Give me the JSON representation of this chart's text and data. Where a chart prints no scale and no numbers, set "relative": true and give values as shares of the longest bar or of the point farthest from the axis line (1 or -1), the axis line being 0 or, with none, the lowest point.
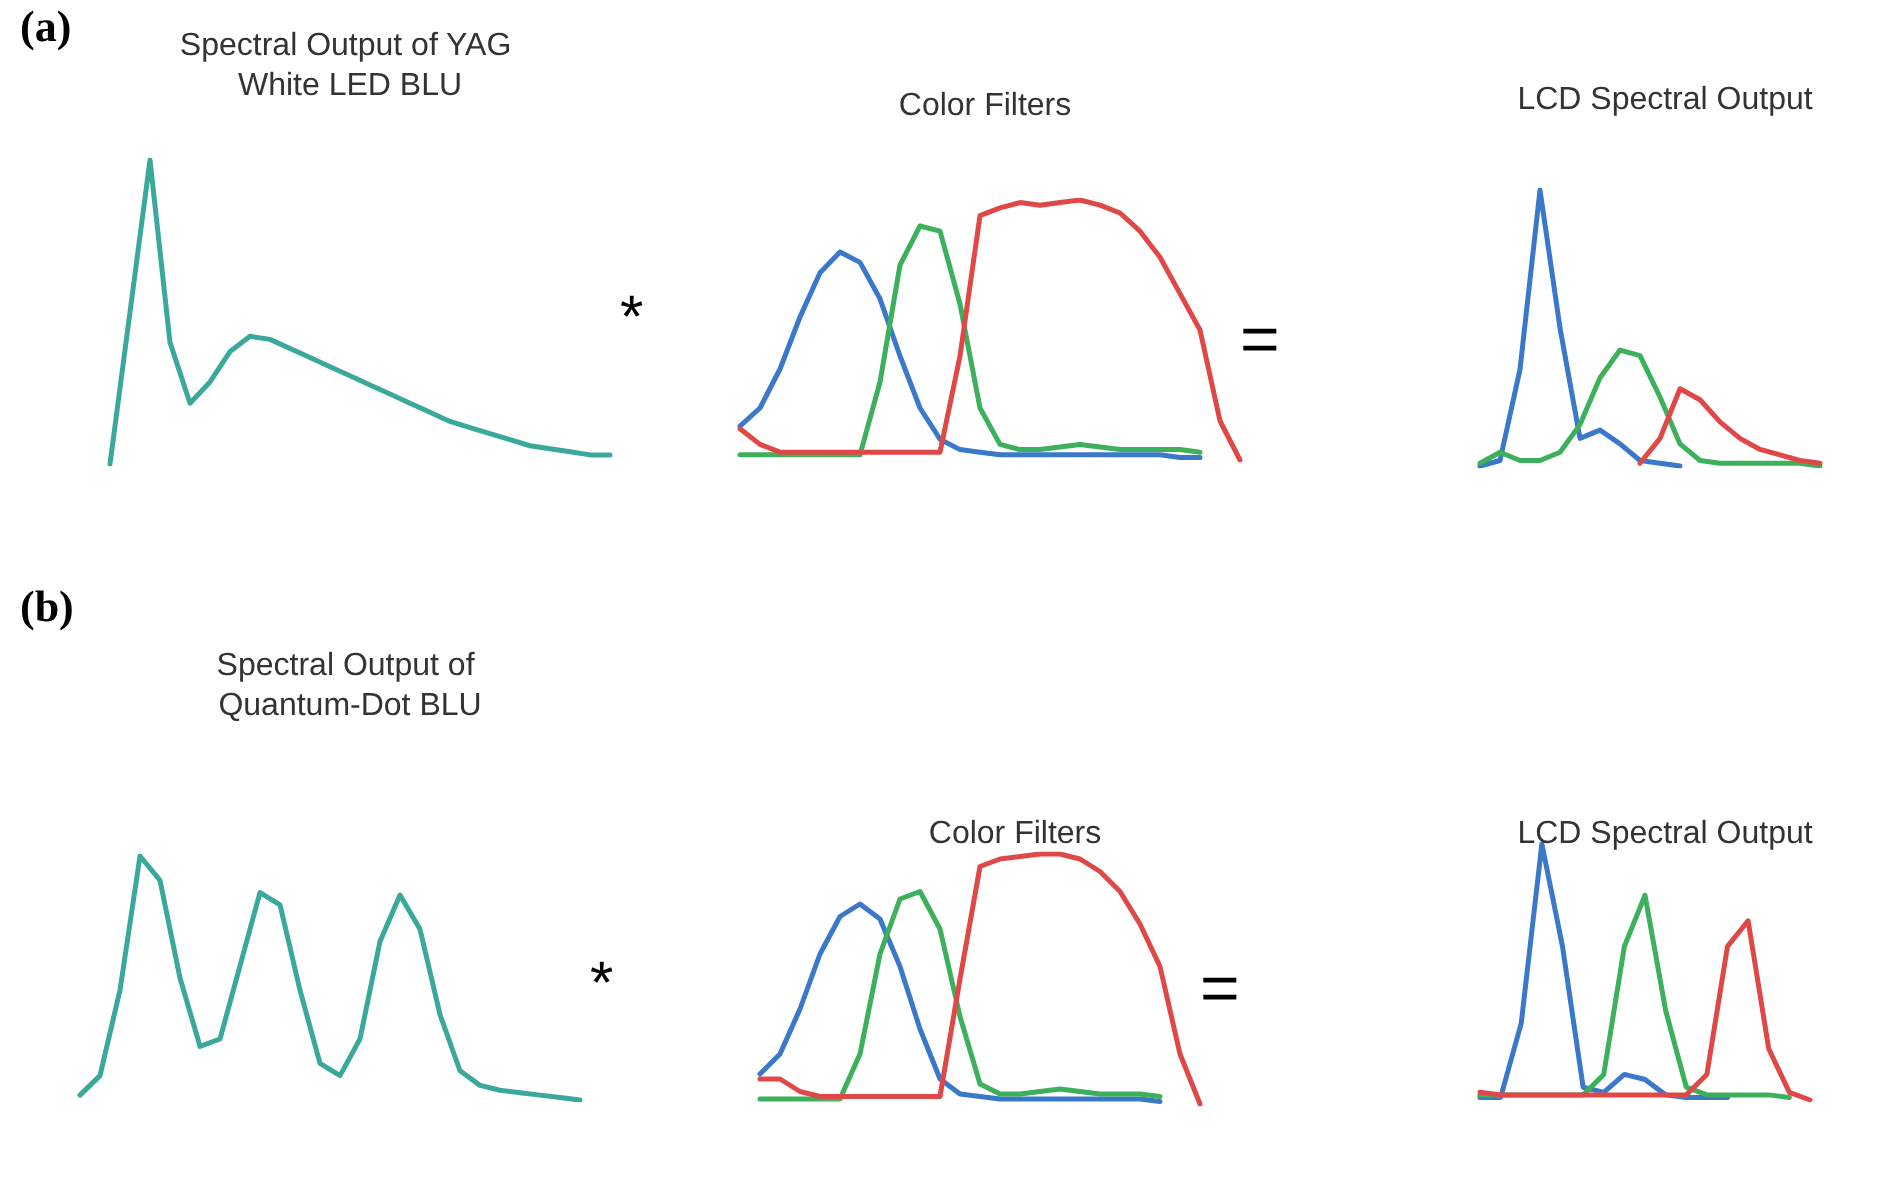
{
  "chart_data": [
    {
      "type": "line",
      "relative": true,
      "marker": "none",
      "title": "Spectral Output of YAG White LED BLU",
      "annotations": [
        "(a)",
        "*"
      ],
      "categories": [
        null,
        null,
        null,
        null,
        null,
        null,
        null,
        null,
        null,
        null,
        null,
        null,
        null,
        null,
        null,
        null,
        null,
        null,
        null,
        null,
        null,
        null,
        null,
        null,
        null,
        null
      ],
      "series": [
        {
          "color": "#3aa89a",
          "values": [
            0,
            0.5,
            1,
            0.4,
            0.2,
            0.27,
            0.37,
            0.42,
            0.41,
            0.38,
            0.35,
            0.32,
            0.29,
            0.26,
            0.23,
            0.2,
            0.17,
            0.14,
            0.12,
            0.1,
            0.08,
            0.06,
            0.05,
            0.04,
            0.03,
            0.03
          ]
        }
      ]
    },
    {
      "type": "line",
      "relative": true,
      "marker": "none",
      "title": "Color Filters",
      "annotations": [
        "="
      ],
      "categories": [
        null,
        null,
        null,
        null,
        null,
        null,
        null,
        null,
        null,
        null,
        null,
        null,
        null,
        null,
        null,
        null,
        null,
        null,
        null,
        null,
        null,
        null,
        null,
        null,
        null,
        null
      ],
      "series": [
        {
          "color": "#3a78c9",
          "values": [
            0.13,
            0.2,
            0.35,
            0.55,
            0.72,
            0.8,
            0.76,
            0.62,
            0.4,
            0.2,
            0.08,
            0.04,
            0.03,
            0.02,
            0.02,
            0.02,
            0.02,
            0.02,
            0.02,
            0.02,
            0.02,
            0.02,
            0.01,
            0.01,
            null,
            null
          ]
        },
        {
          "color": "#3cb05a",
          "values": [
            0.02,
            0.02,
            0.02,
            0.02,
            0.02,
            0.02,
            0.02,
            0.3,
            0.75,
            0.9,
            0.88,
            0.6,
            0.2,
            0.06,
            0.04,
            0.04,
            0.05,
            0.06,
            0.05,
            0.04,
            0.04,
            0.04,
            0.04,
            0.03,
            null,
            null
          ]
        },
        {
          "color": "#e04848",
          "values": [
            0.12,
            0.06,
            0.03,
            0.03,
            0.03,
            0.03,
            0.03,
            0.03,
            0.03,
            0.03,
            0.03,
            0.4,
            0.94,
            0.97,
            0.99,
            0.98,
            0.99,
            1,
            0.98,
            0.95,
            0.88,
            0.78,
            0.64,
            0.5,
            0.15,
            0
          ]
        }
      ]
    },
    {
      "type": "line",
      "relative": true,
      "marker": "none",
      "title": "LCD Spectral Output",
      "categories": [
        null,
        null,
        null,
        null,
        null,
        null,
        null,
        null,
        null,
        null,
        null,
        null,
        null,
        null,
        null,
        null,
        null,
        null
      ],
      "series": [
        {
          "color": "#3a78c9",
          "values": [
            0,
            0.02,
            0.35,
            1,
            0.5,
            0.1,
            0.13,
            0.08,
            0.02,
            0.01,
            0,
            null,
            null,
            null,
            null,
            null,
            null,
            null
          ]
        },
        {
          "color": "#3cb05a",
          "values": [
            0.01,
            0.05,
            0.02,
            0.02,
            0.05,
            0.15,
            0.32,
            0.42,
            0.4,
            0.25,
            0.08,
            0.02,
            0.01,
            0.01,
            0.01,
            0.01,
            0.01,
            0
          ]
        },
        {
          "color": "#e04848",
          "values": [
            null,
            null,
            null,
            null,
            null,
            null,
            null,
            null,
            0.01,
            0.1,
            0.28,
            0.24,
            0.16,
            0.1,
            0.06,
            0.04,
            0.02,
            0.01
          ]
        }
      ]
    },
    {
      "type": "line",
      "relative": true,
      "marker": "none",
      "title": "Spectral Output of Quantum-Dot BLU",
      "annotations": [
        "(b)",
        "*"
      ],
      "categories": [
        null,
        null,
        null,
        null,
        null,
        null,
        null,
        null,
        null,
        null,
        null,
        null,
        null,
        null,
        null,
        null,
        null,
        null,
        null,
        null,
        null,
        null,
        null,
        null,
        null,
        null
      ],
      "series": [
        {
          "color": "#3aa89a",
          "values": [
            0.02,
            0.1,
            0.45,
            1,
            0.9,
            0.5,
            0.22,
            0.25,
            0.55,
            0.85,
            0.8,
            0.45,
            0.15,
            0.1,
            0.25,
            0.65,
            0.84,
            0.7,
            0.35,
            0.12,
            0.06,
            0.04,
            0.03,
            0.02,
            0.01,
            0
          ]
        }
      ]
    },
    {
      "type": "line",
      "relative": true,
      "marker": "none",
      "title": "Color Filters",
      "annotations": [
        "="
      ],
      "categories": [
        null,
        null,
        null,
        null,
        null,
        null,
        null,
        null,
        null,
        null,
        null,
        null,
        null,
        null,
        null,
        null,
        null,
        null,
        null,
        null,
        null,
        null,
        null
      ],
      "series": [
        {
          "color": "#3a78c9",
          "values": [
            0.12,
            0.2,
            0.38,
            0.6,
            0.75,
            0.8,
            0.74,
            0.55,
            0.3,
            0.1,
            0.04,
            0.03,
            0.02,
            0.02,
            0.02,
            0.02,
            0.02,
            0.02,
            0.02,
            0.02,
            0.01,
            null,
            null
          ]
        },
        {
          "color": "#3cb05a",
          "values": [
            0.02,
            0.02,
            0.02,
            0.02,
            0.02,
            0.2,
            0.6,
            0.82,
            0.85,
            0.7,
            0.35,
            0.08,
            0.04,
            0.04,
            0.05,
            0.06,
            0.05,
            0.04,
            0.04,
            0.04,
            0.03,
            null,
            null
          ]
        },
        {
          "color": "#e04848",
          "values": [
            0.1,
            0.1,
            0.05,
            0.03,
            0.03,
            0.03,
            0.03,
            0.03,
            0.03,
            0.03,
            0.5,
            0.95,
            0.98,
            0.99,
            1,
            1,
            0.98,
            0.93,
            0.85,
            0.72,
            0.55,
            0.2,
            0
          ]
        }
      ]
    },
    {
      "type": "line",
      "relative": true,
      "marker": "none",
      "title": "LCD Spectral Output",
      "categories": [
        null,
        null,
        null,
        null,
        null,
        null,
        null,
        null,
        null,
        null,
        null,
        null,
        null,
        null,
        null,
        null,
        null
      ],
      "series": [
        {
          "color": "#3a78c9",
          "values": [
            0.01,
            0.01,
            0.3,
            1,
            0.6,
            0.05,
            0.03,
            0.1,
            0.08,
            0.02,
            0.01,
            0.01,
            0.01,
            null,
            null,
            null,
            null
          ]
        },
        {
          "color": "#3cb05a",
          "values": [
            0.02,
            0.02,
            0.02,
            0.02,
            0.02,
            0.02,
            0.1,
            0.6,
            0.8,
            0.35,
            0.05,
            0.02,
            0.02,
            0.02,
            0.02,
            0.01,
            null
          ]
        },
        {
          "color": "#e04848",
          "values": [
            0.03,
            0.02,
            0.02,
            0.02,
            0.02,
            0.02,
            0.02,
            0.02,
            0.02,
            0.02,
            0.02,
            0.1,
            0.6,
            0.7,
            0.2,
            0.03,
            0
          ]
        }
      ]
    }
  ]
}
